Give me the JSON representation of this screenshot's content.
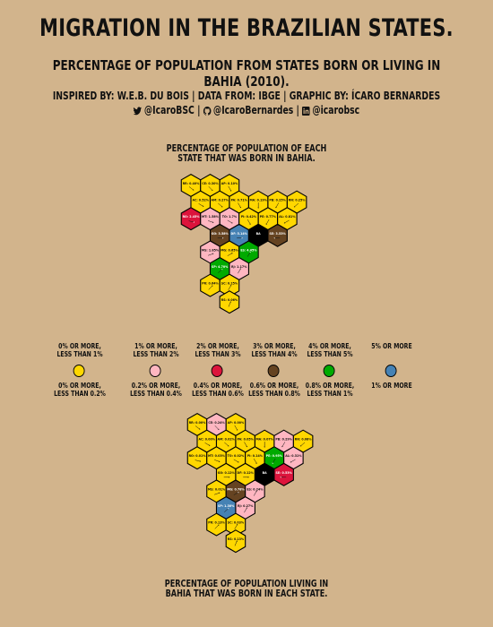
{
  "header": {
    "title": "MIGRATION IN THE BRAZILIAN STATES.",
    "subtitle": "PERCENTAGE OF POPULATION FROM STATES BORN OR LIVING IN BAHIA (2010).",
    "credits": "INSPIRED BY: W.E.B. DU BOIS | DATA FROM: IBGE | GRAPHIC BY: ÍCARO BERNARDES",
    "twitter": "@IcaroBSC |",
    "github": "@IcaroBernardes |",
    "linkedin": "@icarobsc"
  },
  "colors": {
    "background": "#d2b48c",
    "yellow": "#ffd700",
    "pink": "#ffb6c1",
    "red": "#dc143c",
    "brown": "#654321",
    "green": "#00aa00",
    "blue": "#4682b4",
    "bahia": "#000000"
  },
  "map1": {
    "title_line1": "PERCENTAGE OF POPULATION OF EACH",
    "title_line2": "STATE THAT WAS BORN IN BAHIA.",
    "states": [
      {
        "label": "RR: 0.40%",
        "cat": "yellow"
      },
      {
        "label": "CE: 0.30%",
        "cat": "yellow"
      },
      {
        "label": "AP: 0.10%",
        "cat": "yellow"
      },
      {
        "label": "AC: 0.52%",
        "cat": "yellow"
      },
      {
        "label": "AM: 0.27%",
        "cat": "yellow"
      },
      {
        "label": "PA: 0.71%",
        "cat": "yellow"
      },
      {
        "label": "MA: 0.19%",
        "cat": "yellow"
      },
      {
        "label": "PB: 0.25%",
        "cat": "yellow"
      },
      {
        "label": "RN: 0.25%",
        "cat": "yellow"
      },
      {
        "label": "RO: 2.45%",
        "cat": "red"
      },
      {
        "label": "MT: 1.58%",
        "cat": "pink"
      },
      {
        "label": "TO: 1.7%",
        "cat": "pink"
      },
      {
        "label": "PI: 0.42%",
        "cat": "yellow"
      },
      {
        "label": "PE: 0.77%",
        "cat": "yellow"
      },
      {
        "label": "AL: 0.81%",
        "cat": "yellow"
      },
      {
        "label": "GO: 3.58%",
        "cat": "brown"
      },
      {
        "label": "DF: 5.14%",
        "cat": "blue"
      },
      {
        "label": "BA",
        "cat": "bahia"
      },
      {
        "label": "SE: 3.53%",
        "cat": "brown"
      },
      {
        "label": "MS: 1.85%",
        "cat": "pink"
      },
      {
        "label": "MG: 0.65%",
        "cat": "yellow"
      },
      {
        "label": "ES: 4.45%",
        "cat": "green"
      },
      {
        "label": "SP: 4.70%",
        "cat": "green"
      },
      {
        "label": "RJ: 1.17%",
        "cat": "pink"
      },
      {
        "label": "PR: 0.64%",
        "cat": "yellow"
      },
      {
        "label": "SC: 0.25%",
        "cat": "yellow"
      },
      {
        "label": "RS: 0.06%",
        "cat": "yellow"
      }
    ]
  },
  "legend": [
    {
      "top1": "0% OR MORE,",
      "top2": "LESS THAN 1%",
      "bot1": "0% OR MORE,",
      "bot2": "LESS THAN 0.2%",
      "cat": "yellow"
    },
    {
      "top1": "1% OR MORE,",
      "top2": "LESS THAN 2%",
      "bot1": "0.2% OR MORE,",
      "bot2": "LESS THAN 0.4%",
      "cat": "pink"
    },
    {
      "top1": "2% OR MORE,",
      "top2": "LESS THAN 3%",
      "bot1": "0.4% OR MORE,",
      "bot2": "LESS THAN 0.6%",
      "cat": "red"
    },
    {
      "top1": "3% OR MORE,",
      "top2": "LESS THAN 4%",
      "bot1": "0.6% OR MORE,",
      "bot2": "LESS THAN 0.8%",
      "cat": "brown"
    },
    {
      "top1": "4% OR MORE,",
      "top2": "LESS THAN 5%",
      "bot1": "0.8% OR MORE,",
      "bot2": "LESS THAN 1%",
      "cat": "green"
    },
    {
      "top1": "5% OR MORE",
      "top2": "",
      "bot1": "1% OR MORE",
      "bot2": "",
      "cat": "blue"
    }
  ],
  "map2": {
    "title_line1": "PERCENTAGE OF POPULATION LIVING IN",
    "title_line2": "BAHIA THAT WAS BORN IN EACH STATE.",
    "states": [
      {
        "label": "RR: 0.00%",
        "cat": "yellow"
      },
      {
        "label": "CE: 0.24%",
        "cat": "pink"
      },
      {
        "label": "AP: 0.00%",
        "cat": "yellow"
      },
      {
        "label": "AC: 0.00%",
        "cat": "yellow"
      },
      {
        "label": "AM: 0.02%",
        "cat": "yellow"
      },
      {
        "label": "PA: 0.05%",
        "cat": "yellow"
      },
      {
        "label": "MA: 0.07%",
        "cat": "yellow"
      },
      {
        "label": "PB: 0.29%",
        "cat": "pink"
      },
      {
        "label": "RN: 0.08%",
        "cat": "yellow"
      },
      {
        "label": "RO: 0.01%",
        "cat": "yellow"
      },
      {
        "label": "MT: 0.03%",
        "cat": "yellow"
      },
      {
        "label": "TO: 0.02%",
        "cat": "yellow"
      },
      {
        "label": "PI: 0.14%",
        "cat": "yellow"
      },
      {
        "label": "PE: 0.95%",
        "cat": "green"
      },
      {
        "label": "AL: 0.31%",
        "cat": "pink"
      },
      {
        "label": "GO: 0.12%",
        "cat": "yellow"
      },
      {
        "label": "DF: 0.12%",
        "cat": "yellow"
      },
      {
        "label": "BA",
        "cat": "bahia"
      },
      {
        "label": "SE: 0.53%",
        "cat": "red"
      },
      {
        "label": "MS: 0.01%",
        "cat": "yellow"
      },
      {
        "label": "MG: 0.78%",
        "cat": "brown"
      },
      {
        "label": "ES: 0.24%",
        "cat": "pink"
      },
      {
        "label": "SP: 1.30%",
        "cat": "blue"
      },
      {
        "label": "RJ: 0.27%",
        "cat": "pink"
      },
      {
        "label": "PR: 0.13%",
        "cat": "yellow"
      },
      {
        "label": "SC: 0.03%",
        "cat": "yellow"
      },
      {
        "label": "RS: 0.13%",
        "cat": "yellow"
      }
    ]
  }
}
